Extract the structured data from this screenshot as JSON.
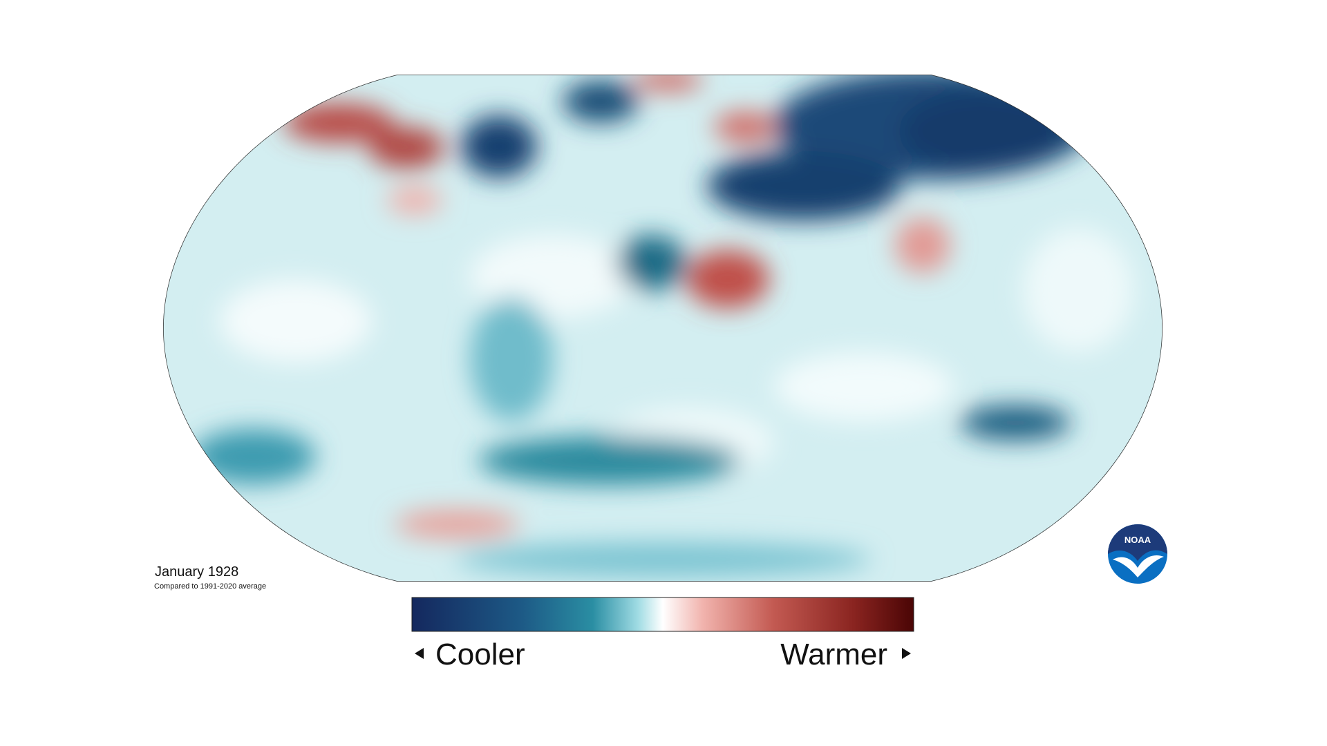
{
  "map": {
    "title": "January 1928",
    "subtitle": "Compared to 1991-2020 average"
  },
  "legend": {
    "low": "Cooler",
    "high": "Warmer"
  },
  "logo": {
    "text": "NOAA"
  }
}
